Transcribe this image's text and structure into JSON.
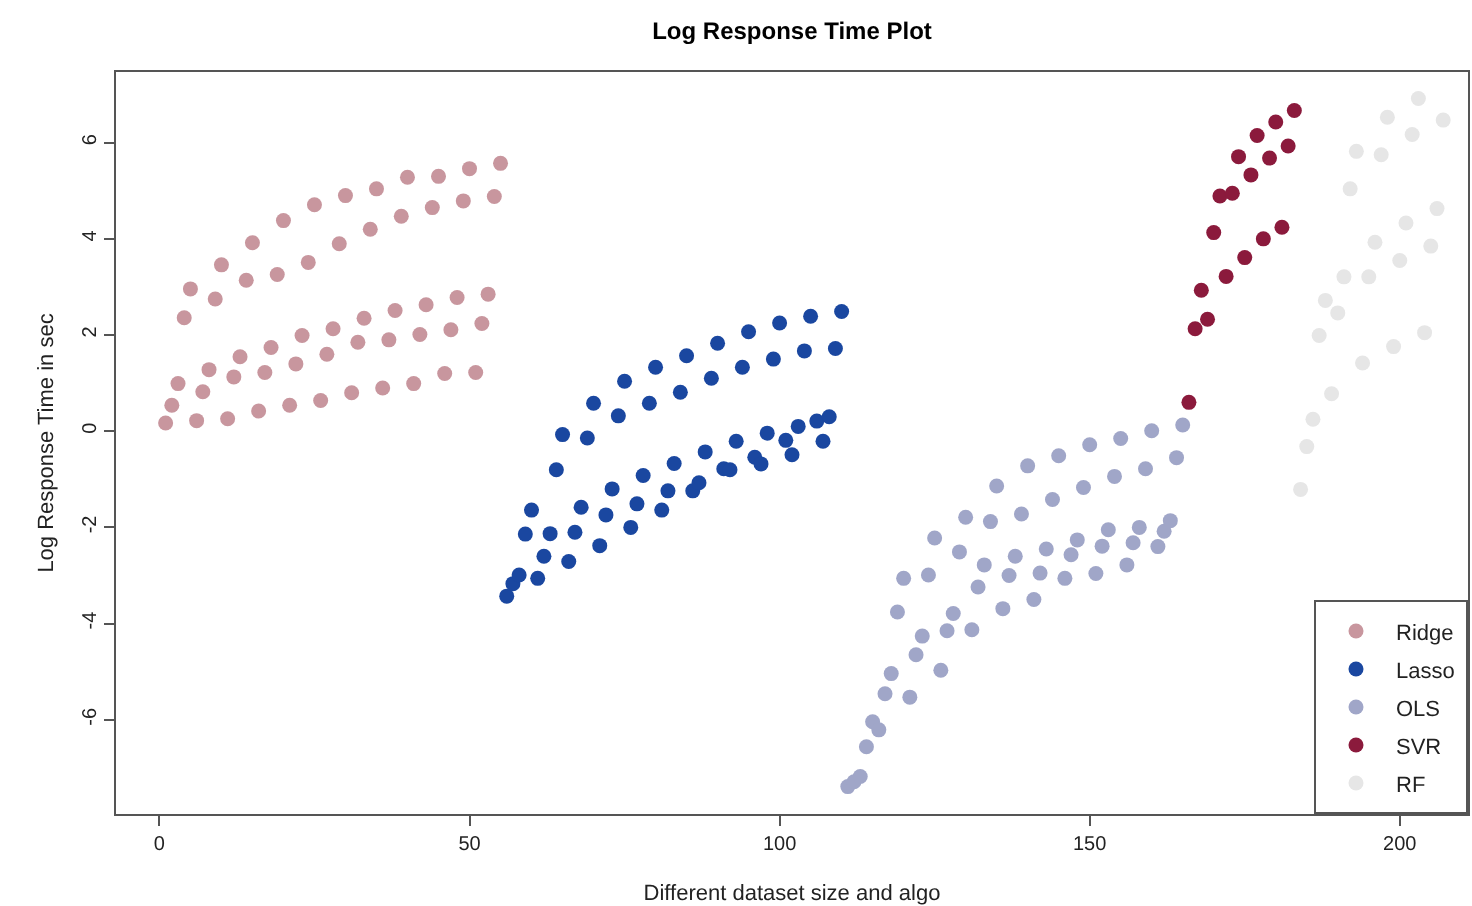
{
  "chart_data": {
    "type": "scatter",
    "title": "Log Response Time Plot",
    "xlabel": "Different dataset size and algo",
    "ylabel": "Log Response Time in sec",
    "xlim": [
      -7,
      211
    ],
    "xticks": [
      0,
      50,
      100,
      150,
      200
    ],
    "ylim": [
      -7.96,
      7.47
    ],
    "yticks": [
      -6,
      -4,
      -2,
      0,
      2,
      4,
      6
    ],
    "grid": false,
    "legend": "bottom right",
    "marker": "circle",
    "series": [
      {
        "name": "Ridge",
        "color": "#c8969e",
        "x": [
          1,
          2,
          3,
          4,
          5,
          6,
          7,
          8,
          9,
          10,
          11,
          12,
          13,
          14,
          15,
          16,
          17,
          18,
          19,
          20,
          21,
          22,
          23,
          24,
          25,
          26,
          27,
          28,
          29,
          30,
          31,
          32,
          33,
          34,
          35,
          36,
          37,
          38,
          39,
          40,
          41,
          42,
          43,
          44,
          45,
          46,
          47,
          48,
          49,
          50,
          51,
          52,
          53,
          54,
          55
        ],
        "values": [
          0.17,
          0.54,
          0.99,
          2.36,
          2.96,
          0.22,
          0.82,
          1.28,
          2.75,
          3.46,
          0.26,
          1.13,
          1.55,
          3.14,
          3.92,
          0.42,
          1.22,
          1.74,
          3.26,
          4.38,
          0.54,
          1.4,
          1.99,
          3.51,
          4.71,
          0.64,
          1.6,
          2.13,
          3.9,
          4.9,
          0.8,
          1.85,
          2.35,
          4.2,
          5.04,
          0.9,
          1.9,
          2.51,
          4.47,
          5.28,
          0.99,
          2.01,
          2.63,
          4.65,
          5.3,
          1.2,
          2.11,
          2.78,
          4.79,
          5.46,
          1.22,
          2.24,
          2.85,
          4.88,
          5.57
        ]
      },
      {
        "name": "Lasso",
        "color": "#1a47a0",
        "x": [
          56,
          57,
          58,
          59,
          60,
          61,
          62,
          63,
          64,
          65,
          66,
          67,
          68,
          69,
          70,
          71,
          72,
          73,
          74,
          75,
          76,
          77,
          78,
          79,
          80,
          81,
          82,
          83,
          84,
          85,
          86,
          87,
          88,
          89,
          90,
          91,
          92,
          93,
          94,
          95,
          96,
          97,
          98,
          99,
          100,
          101,
          102,
          103,
          104,
          105,
          106,
          107,
          108,
          109,
          110
        ],
        "values": [
          -3.43,
          -3.17,
          -2.99,
          -2.14,
          -1.64,
          -3.06,
          -2.6,
          -2.13,
          -0.8,
          -0.07,
          -2.71,
          -2.1,
          -1.58,
          -0.14,
          0.58,
          -2.38,
          -1.74,
          -1.2,
          0.32,
          1.04,
          -2.0,
          -1.51,
          -0.92,
          0.58,
          1.33,
          -1.64,
          -1.24,
          -0.67,
          0.81,
          1.57,
          -1.24,
          -1.07,
          -0.43,
          1.1,
          1.83,
          -0.78,
          -0.8,
          -0.21,
          1.33,
          2.07,
          -0.54,
          -0.68,
          -0.04,
          1.5,
          2.25,
          -0.19,
          -0.49,
          0.1,
          1.67,
          2.39,
          0.21,
          -0.21,
          0.3,
          1.72,
          2.49
        ]
      },
      {
        "name": "OLS",
        "color": "#a0a6c8",
        "x": [
          111,
          112,
          113,
          114,
          115,
          116,
          117,
          118,
          119,
          120,
          121,
          122,
          123,
          124,
          125,
          126,
          127,
          128,
          129,
          130,
          131,
          132,
          133,
          134,
          135,
          136,
          137,
          138,
          139,
          140,
          141,
          142,
          143,
          144,
          145,
          146,
          147,
          148,
          149,
          150,
          151,
          152,
          153,
          154,
          155,
          156,
          157,
          158,
          159,
          160,
          161,
          162,
          163,
          164,
          165
        ],
        "values": [
          -7.39,
          -7.29,
          -7.18,
          -6.56,
          -6.04,
          -6.21,
          -5.46,
          -5.04,
          -3.76,
          -3.06,
          -5.53,
          -4.65,
          -4.26,
          -2.99,
          -2.22,
          -4.97,
          -4.15,
          -3.79,
          -2.51,
          -1.79,
          -4.13,
          -3.24,
          -2.78,
          -1.88,
          -1.14,
          -3.69,
          -3.0,
          -2.6,
          -1.72,
          -0.72,
          -3.5,
          -2.95,
          -2.45,
          -1.42,
          -0.51,
          -3.06,
          -2.57,
          -2.26,
          -1.17,
          -0.28,
          -2.96,
          -2.39,
          -2.05,
          -0.94,
          -0.15,
          -2.78,
          -2.32,
          -2.0,
          -0.78,
          0.01,
          -2.4,
          -2.08,
          -1.86,
          -0.55,
          0.13
        ]
      },
      {
        "name": "SVR",
        "color": "#8b1a3c",
        "x": [
          166,
          167,
          168,
          169,
          170,
          171,
          172,
          173,
          174,
          175,
          176,
          177,
          178,
          179,
          180,
          181,
          182,
          183
        ],
        "values": [
          0.6,
          2.13,
          2.93,
          2.33,
          4.13,
          4.89,
          3.22,
          4.95,
          5.71,
          3.61,
          5.33,
          6.15,
          4.0,
          5.68,
          6.43,
          4.24,
          5.93,
          6.67
        ]
      },
      {
        "name": "RF",
        "color": "#e6e6e6",
        "x": [
          184,
          185,
          186,
          187,
          188,
          189,
          190,
          191,
          192,
          193,
          194,
          195,
          196,
          197,
          198,
          199,
          200,
          201,
          202,
          203,
          204,
          205,
          206,
          207
        ],
        "values": [
          -1.21,
          -0.32,
          0.25,
          1.99,
          2.72,
          0.78,
          2.46,
          3.21,
          5.04,
          5.82,
          1.42,
          3.21,
          3.93,
          5.75,
          6.53,
          1.76,
          3.55,
          4.33,
          6.17,
          6.92,
          2.05,
          3.85,
          4.63,
          6.47
        ]
      }
    ]
  }
}
